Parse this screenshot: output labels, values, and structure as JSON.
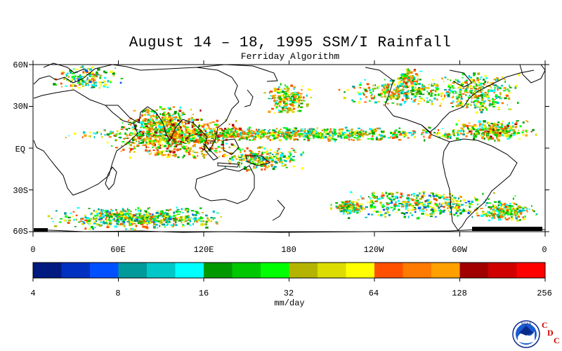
{
  "title": "August 14 – 18, 1995 SSM/I Rainfall",
  "subtitle": "Ferriday Algorithm",
  "lat_labels": [
    "60N",
    "30N",
    "EQ",
    "30S",
    "60S"
  ],
  "lon_labels": [
    "0",
    "60E",
    "120E",
    "180",
    "120W",
    "60W",
    "0"
  ],
  "colorbar": {
    "colors": [
      "#001a80",
      "#0030c0",
      "#0050ff",
      "#009a9a",
      "#00c8c8",
      "#00ffff",
      "#009900",
      "#00c800",
      "#00ff00",
      "#b4b400",
      "#dcdc00",
      "#ffff00",
      "#ff5000",
      "#ff7a00",
      "#ffa000",
      "#a00000",
      "#d00000",
      "#ff0000"
    ],
    "tick_labels": [
      "4",
      "8",
      "16",
      "32",
      "64",
      "128",
      "256"
    ],
    "units": "mm/day"
  },
  "logo": {
    "text": "NOAA",
    "letters": [
      "C",
      "D",
      "C"
    ]
  },
  "map_background": "#ffffff",
  "coast_color": "#000000"
}
